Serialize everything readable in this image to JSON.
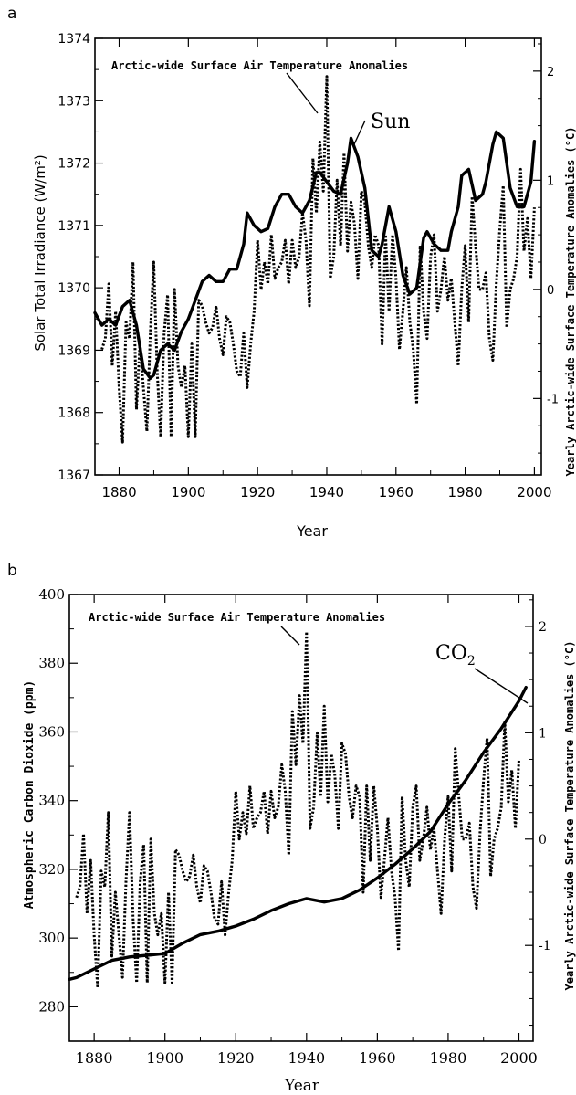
{
  "chart_data": [
    {
      "panel_label": "a",
      "type": "line",
      "xlabel": "Year",
      "ylabel": "Solar Total Irradiance  (W/m²)",
      "y2label": "Yearly Arctic-wide Surface Temperature Anomalies  (°C)",
      "xlim": [
        1873,
        2002
      ],
      "ylim": [
        1367,
        1374
      ],
      "y2lim": [
        -1.7,
        2.3
      ],
      "xticks": [
        "1880",
        "1900",
        "1920",
        "1940",
        "1960",
        "1980",
        "2000"
      ],
      "yticks": [
        "1367",
        "1368",
        "1369",
        "1370",
        "1371",
        "1372",
        "1373",
        "1374"
      ],
      "y2ticks": [
        "-1",
        "0",
        "1",
        "2"
      ],
      "annotations": {
        "temperature": "Arctic-wide Surface Air Temperature Anomalies",
        "driver": "Sun"
      },
      "series": [
        {
          "name": "Sun",
          "axis": "left",
          "style": "solid",
          "x": [
            1873,
            1875,
            1877,
            1879,
            1881,
            1883,
            1885,
            1887,
            1889,
            1890,
            1892,
            1894,
            1896,
            1898,
            1900,
            1902,
            1904,
            1906,
            1908,
            1910,
            1912,
            1914,
            1916,
            1917,
            1919,
            1921,
            1923,
            1925,
            1927,
            1929,
            1931,
            1933,
            1935,
            1937,
            1938,
            1940,
            1942,
            1944,
            1946,
            1947,
            1949,
            1951,
            1953,
            1955,
            1956,
            1958,
            1960,
            1962,
            1964,
            1966,
            1968,
            1969,
            1971,
            1973,
            1975,
            1976,
            1978,
            1979,
            1981,
            1983,
            1985,
            1986,
            1988,
            1989,
            1991,
            1993,
            1995,
            1997,
            1999,
            2000
          ],
          "values": [
            1369.6,
            1369.4,
            1369.5,
            1369.4,
            1369.7,
            1369.8,
            1369.4,
            1368.7,
            1368.55,
            1368.6,
            1369.0,
            1369.1,
            1369.0,
            1369.3,
            1369.5,
            1369.8,
            1370.1,
            1370.2,
            1370.1,
            1370.1,
            1370.3,
            1370.3,
            1370.7,
            1371.2,
            1371.0,
            1370.9,
            1370.95,
            1371.3,
            1371.5,
            1371.5,
            1371.3,
            1371.2,
            1371.4,
            1371.85,
            1371.85,
            1371.7,
            1371.55,
            1371.5,
            1372.0,
            1372.4,
            1372.1,
            1371.6,
            1370.6,
            1370.5,
            1370.7,
            1371.3,
            1370.9,
            1370.2,
            1369.9,
            1370.0,
            1370.8,
            1370.9,
            1370.7,
            1370.6,
            1370.6,
            1370.9,
            1371.3,
            1371.8,
            1371.9,
            1371.4,
            1371.5,
            1371.7,
            1372.3,
            1372.5,
            1372.4,
            1371.6,
            1371.3,
            1371.3,
            1371.7,
            1372.35
          ]
        },
        {
          "name": "Arctic-wide Surface Air Temperature Anomalies",
          "axis": "right",
          "style": "dotted",
          "x": [
            1875,
            1876,
            1877,
            1878,
            1879,
            1880,
            1881,
            1882,
            1883,
            1884,
            1885,
            1886,
            1887,
            1888,
            1889,
            1890,
            1891,
            1892,
            1893,
            1894,
            1895,
            1896,
            1897,
            1898,
            1899,
            1900,
            1901,
            1902,
            1903,
            1904,
            1905,
            1906,
            1907,
            1908,
            1909,
            1910,
            1911,
            1912,
            1913,
            1914,
            1915,
            1916,
            1917,
            1918,
            1919,
            1920,
            1921,
            1922,
            1923,
            1924,
            1925,
            1926,
            1927,
            1928,
            1929,
            1930,
            1931,
            1932,
            1933,
            1934,
            1935,
            1936,
            1937,
            1938,
            1939,
            1940,
            1941,
            1942,
            1943,
            1944,
            1945,
            1946,
            1947,
            1948,
            1949,
            1950,
            1951,
            1952,
            1953,
            1954,
            1955,
            1956,
            1957,
            1958,
            1959,
            1960,
            1961,
            1962,
            1963,
            1964,
            1965,
            1966,
            1967,
            1968,
            1969,
            1970,
            1971,
            1972,
            1973,
            1974,
            1975,
            1976,
            1977,
            1978,
            1979,
            1980,
            1981,
            1982,
            1983,
            1984,
            1985,
            1986,
            1987,
            1988,
            1989,
            1990,
            1991,
            1992,
            1993,
            1994,
            1995,
            1996,
            1997,
            1998,
            1999,
            2000
          ],
          "values": [
            -0.55,
            -0.45,
            0.05,
            -0.7,
            -0.2,
            -0.9,
            -1.4,
            -0.3,
            -0.45,
            0.25,
            -1.1,
            -0.5,
            -0.9,
            -1.3,
            -0.4,
            0.25,
            -0.75,
            -1.35,
            -0.4,
            -0.05,
            -1.35,
            0.0,
            -0.7,
            -0.9,
            -0.7,
            -1.35,
            -0.5,
            -1.35,
            -0.1,
            -0.15,
            -0.3,
            -0.4,
            -0.35,
            -0.15,
            -0.45,
            -0.6,
            -0.25,
            -0.3,
            -0.5,
            -0.75,
            -0.8,
            -0.4,
            -0.9,
            -0.5,
            -0.2,
            0.45,
            0.0,
            0.25,
            0.05,
            0.5,
            0.1,
            0.2,
            0.25,
            0.45,
            0.05,
            0.45,
            0.2,
            0.3,
            0.7,
            0.45,
            -0.15,
            1.2,
            0.7,
            1.35,
            0.9,
            1.95,
            0.1,
            0.3,
            1.0,
            0.4,
            1.25,
            0.35,
            0.8,
            0.6,
            0.1,
            0.9,
            0.8,
            0.4,
            0.2,
            0.5,
            0.4,
            -0.5,
            0.5,
            -0.2,
            0.5,
            0.1,
            -0.55,
            -0.2,
            0.2,
            -0.3,
            -0.55,
            -1.05,
            0.4,
            -0.2,
            -0.45,
            0.3,
            0.5,
            -0.2,
            0.0,
            0.3,
            -0.1,
            0.1,
            -0.3,
            -0.7,
            0.0,
            0.4,
            -0.3,
            0.85,
            0.4,
            0.0,
            0.0,
            0.15,
            -0.45,
            -0.65,
            0.05,
            0.55,
            0.95,
            -0.35,
            0.0,
            0.1,
            0.3,
            1.1,
            0.35,
            0.65,
            0.1,
            0.75
          ]
        }
      ]
    },
    {
      "panel_label": "b",
      "type": "line",
      "xlabel": "Year",
      "ylabel": "Atmospheric Carbon Dioxide  (ppm)",
      "y2label": "Yearly Arctic-wide Surface Temperature Anomalies  (°C)",
      "xlim": [
        1873,
        2004
      ],
      "ylim": [
        270,
        400
      ],
      "y2lim": [
        -1.9,
        2.3
      ],
      "xticks": [
        "1880",
        "1900",
        "1920",
        "1940",
        "1960",
        "1980",
        "2000"
      ],
      "yticks": [
        "280",
        "300",
        "320",
        "340",
        "360",
        "380",
        "400"
      ],
      "y2ticks": [
        "-1",
        "0",
        "1",
        "2"
      ],
      "annotations": {
        "temperature": "Arctic-wide Surface Air Temperature Anomalies",
        "driver": "CO",
        "driver_subscript": "2"
      },
      "series": [
        {
          "name": "CO2",
          "axis": "left",
          "style": "solid",
          "x": [
            1873,
            1875,
            1880,
            1885,
            1890,
            1895,
            1900,
            1905,
            1910,
            1915,
            1920,
            1925,
            1930,
            1935,
            1940,
            1945,
            1950,
            1955,
            1960,
            1965,
            1970,
            1975,
            1980,
            1985,
            1990,
            1995,
            2000,
            2002
          ],
          "values": [
            288,
            288.5,
            291,
            293.5,
            294.5,
            295,
            295.5,
            298.5,
            301,
            302,
            303.5,
            305.5,
            308,
            310,
            311.5,
            310.5,
            311.5,
            314,
            317.5,
            321.5,
            326,
            331,
            339,
            346,
            354,
            361,
            369,
            373
          ]
        },
        {
          "name": "Arctic-wide Surface Air Temperature Anomalies",
          "axis": "right",
          "style": "dotted",
          "x": [
            1875,
            1876,
            1877,
            1878,
            1879,
            1880,
            1881,
            1882,
            1883,
            1884,
            1885,
            1886,
            1887,
            1888,
            1889,
            1890,
            1891,
            1892,
            1893,
            1894,
            1895,
            1896,
            1897,
            1898,
            1899,
            1900,
            1901,
            1902,
            1903,
            1904,
            1905,
            1906,
            1907,
            1908,
            1909,
            1910,
            1911,
            1912,
            1913,
            1914,
            1915,
            1916,
            1917,
            1918,
            1919,
            1920,
            1921,
            1922,
            1923,
            1924,
            1925,
            1926,
            1927,
            1928,
            1929,
            1930,
            1931,
            1932,
            1933,
            1934,
            1935,
            1936,
            1937,
            1938,
            1939,
            1940,
            1941,
            1942,
            1943,
            1944,
            1945,
            1946,
            1947,
            1948,
            1949,
            1950,
            1951,
            1952,
            1953,
            1954,
            1955,
            1956,
            1957,
            1958,
            1959,
            1960,
            1961,
            1962,
            1963,
            1964,
            1965,
            1966,
            1967,
            1968,
            1969,
            1970,
            1971,
            1972,
            1973,
            1974,
            1975,
            1976,
            1977,
            1978,
            1979,
            1980,
            1981,
            1982,
            1983,
            1984,
            1985,
            1986,
            1987,
            1988,
            1989,
            1990,
            1991,
            1992,
            1993,
            1994,
            1995,
            1996,
            1997,
            1998,
            1999,
            2000
          ],
          "values": [
            -0.55,
            -0.45,
            0.05,
            -0.7,
            -0.2,
            -0.9,
            -1.4,
            -0.3,
            -0.45,
            0.25,
            -1.1,
            -0.5,
            -0.9,
            -1.3,
            -0.4,
            0.25,
            -0.75,
            -1.35,
            -0.4,
            -0.05,
            -1.35,
            0.0,
            -0.7,
            -0.9,
            -0.7,
            -1.35,
            -0.5,
            -1.35,
            -0.1,
            -0.15,
            -0.3,
            -0.4,
            -0.35,
            -0.15,
            -0.45,
            -0.6,
            -0.25,
            -0.3,
            -0.5,
            -0.75,
            -0.8,
            -0.4,
            -0.9,
            -0.5,
            -0.2,
            0.45,
            0.0,
            0.25,
            0.05,
            0.5,
            0.1,
            0.2,
            0.25,
            0.45,
            0.05,
            0.45,
            0.2,
            0.3,
            0.7,
            0.45,
            -0.15,
            1.2,
            0.7,
            1.35,
            0.9,
            1.95,
            0.1,
            0.3,
            1.0,
            0.4,
            1.25,
            0.35,
            0.8,
            0.6,
            0.1,
            0.9,
            0.8,
            0.4,
            0.2,
            0.5,
            0.4,
            -0.5,
            0.5,
            -0.2,
            0.5,
            0.1,
            -0.55,
            -0.2,
            0.2,
            -0.3,
            -0.55,
            -1.05,
            0.4,
            -0.2,
            -0.45,
            0.3,
            0.5,
            -0.2,
            0.0,
            0.3,
            -0.1,
            0.1,
            -0.3,
            -0.7,
            0.0,
            0.4,
            -0.3,
            0.85,
            0.4,
            0.0,
            0.0,
            0.15,
            -0.45,
            -0.65,
            0.05,
            0.55,
            0.95,
            -0.35,
            0.0,
            0.1,
            0.3,
            1.1,
            0.35,
            0.65,
            0.1,
            0.75
          ]
        }
      ]
    }
  ]
}
